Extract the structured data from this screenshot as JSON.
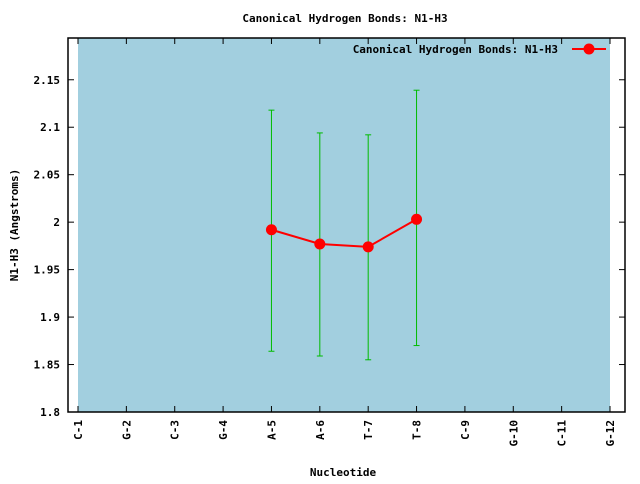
{
  "chart_data": {
    "type": "line",
    "title": "Canonical Hydrogen Bonds: N1-H3",
    "xlabel": "Nucleotide",
    "ylabel": "N1-H3 (Angstroms)",
    "categories": [
      "C-1",
      "G-2",
      "C-3",
      "G-4",
      "A-5",
      "A-6",
      "T-7",
      "T-8",
      "C-9",
      "G-10",
      "C-11",
      "G-12"
    ],
    "ylim": [
      1.8,
      2.194
    ],
    "yticks": [
      "1.8",
      "1.85",
      "1.9",
      "1.95",
      "2",
      "2.05",
      "2.1",
      "2.15"
    ],
    "legend_position": "top-right",
    "background_color": "#a2cfdf",
    "series": [
      {
        "name": "Canonical Hydrogen Bonds: N1-H3",
        "color": "#ff0000",
        "errorbar_color": "#00bb00",
        "points": [
          {
            "x": "A-5",
            "y": 1.992,
            "low": 1.864,
            "high": 2.118
          },
          {
            "x": "A-6",
            "y": 1.977,
            "low": 1.859,
            "high": 2.094
          },
          {
            "x": "T-7",
            "y": 1.974,
            "low": 1.855,
            "high": 2.092
          },
          {
            "x": "T-8",
            "y": 2.003,
            "low": 1.87,
            "high": 2.139
          }
        ]
      }
    ]
  }
}
